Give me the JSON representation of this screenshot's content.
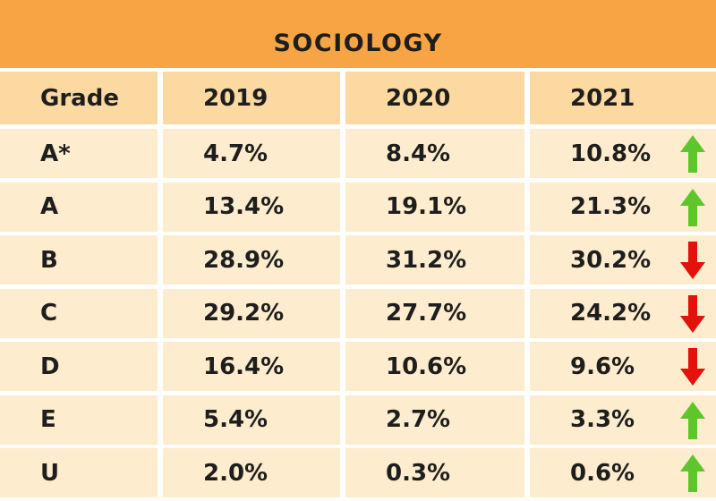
{
  "chart_data": {
    "type": "table",
    "title": "SOCIOLOGY",
    "columns": [
      "Grade",
      "2019",
      "2020",
      "2021"
    ],
    "rows": [
      {
        "grade": "A*",
        "y2019": "4.7%",
        "y2020": "8.4%",
        "y2021": "10.8%",
        "trend": "up"
      },
      {
        "grade": "A",
        "y2019": "13.4%",
        "y2020": "19.1%",
        "y2021": "21.3%",
        "trend": "up"
      },
      {
        "grade": "B",
        "y2019": "28.9%",
        "y2020": "31.2%",
        "y2021": "30.2%",
        "trend": "down"
      },
      {
        "grade": "C",
        "y2019": "29.2%",
        "y2020": "27.7%",
        "y2021": "24.2%",
        "trend": "down"
      },
      {
        "grade": "D",
        "y2019": "16.4%",
        "y2020": "10.6%",
        "y2021": "9.6%",
        "trend": "down"
      },
      {
        "grade": "E",
        "y2019": "5.4%",
        "y2020": "2.7%",
        "y2021": "3.3%",
        "trend": "up"
      },
      {
        "grade": "U",
        "y2019": "2.0%",
        "y2020": "0.3%",
        "y2021": "0.6%",
        "trend": "up"
      }
    ]
  },
  "colors": {
    "title_bg": "#f7a544",
    "header_bg": "#fbd9a0",
    "row_bg": "#fdeccd",
    "up": "#5fc62a",
    "down": "#e3120b"
  }
}
